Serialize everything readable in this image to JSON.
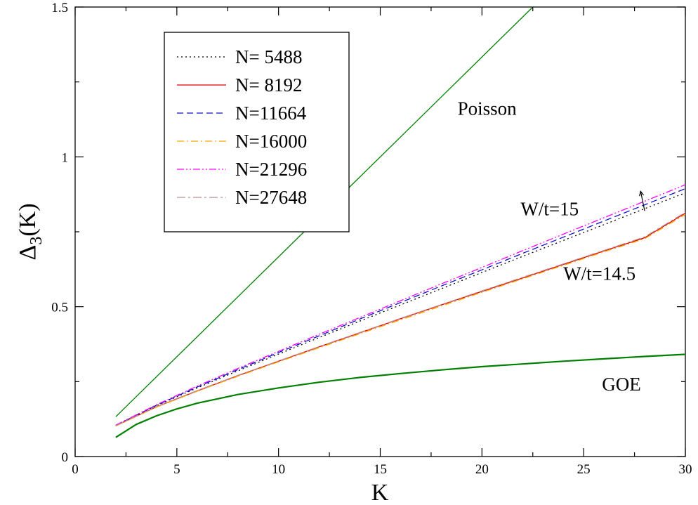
{
  "chart_data": {
    "type": "line",
    "xlabel": "K",
    "ylabel_main": "Δ",
    "ylabel_sub": "3",
    "ylabel_tail": "(K)",
    "xlim": [
      0,
      30
    ],
    "ylim": [
      0,
      1.5
    ],
    "x_major_ticks": [
      0,
      5,
      10,
      15,
      20,
      25,
      30
    ],
    "x_tick_labels": [
      "0",
      "5",
      "10",
      "15",
      "20",
      "25",
      "30"
    ],
    "y_major_ticks": [
      0,
      0.5,
      1,
      1.5
    ],
    "y_tick_labels": [
      "0",
      "0.5",
      "1",
      "1.5"
    ],
    "x_minor_step": 2.5,
    "y_minor_step": 0.25,
    "grid": false,
    "legend_position": "top-left",
    "x": [
      2,
      4,
      6,
      8,
      10,
      12,
      14,
      16,
      18,
      20,
      22,
      24,
      26,
      28,
      30
    ],
    "series": [
      {
        "name": "N= 5488",
        "color": "#000000",
        "dash": "2,4",
        "width": 1.3,
        "values": [
          0.103,
          0.17,
          0.229,
          0.286,
          0.342,
          0.397,
          0.452,
          0.506,
          0.56,
          0.614,
          0.668,
          0.721,
          0.774,
          0.827,
          0.88
        ]
      },
      {
        "name": "N= 8192",
        "color": "#e00000",
        "dash": "",
        "width": 1.3,
        "values": [
          0.103,
          0.166,
          0.219,
          0.27,
          0.318,
          0.366,
          0.413,
          0.46,
          0.506,
          0.551,
          0.596,
          0.641,
          0.686,
          0.73,
          0.812
        ]
      },
      {
        "name": "N=11664",
        "color": "#1010cc",
        "dash": "9,5",
        "width": 1.3,
        "values": [
          0.104,
          0.171,
          0.232,
          0.29,
          0.347,
          0.403,
          0.459,
          0.514,
          0.569,
          0.623,
          0.678,
          0.732,
          0.786,
          0.84,
          0.894
        ]
      },
      {
        "name": "N=16000",
        "color": "#ffa500",
        "dash": "10,4,2,4",
        "width": 1.3,
        "values": [
          0.102,
          0.165,
          0.218,
          0.268,
          0.316,
          0.363,
          0.41,
          0.456,
          0.502,
          0.548,
          0.593,
          0.638,
          0.683,
          0.727,
          0.808
        ]
      },
      {
        "name": "N=21296",
        "color": "#ff00ff",
        "dash": "10,3,2,3,2,3",
        "width": 1.3,
        "values": [
          0.105,
          0.173,
          0.235,
          0.294,
          0.351,
          0.408,
          0.464,
          0.52,
          0.576,
          0.631,
          0.687,
          0.742,
          0.797,
          0.852,
          0.907
        ]
      },
      {
        "name": "N=27648",
        "color": "#bc8f8f",
        "dash": "12,4,3,4",
        "width": 1.3,
        "values": [
          0.103,
          0.167,
          0.22,
          0.271,
          0.319,
          0.367,
          0.414,
          0.461,
          0.507,
          0.553,
          0.598,
          0.643,
          0.688,
          0.733,
          0.815
        ]
      }
    ],
    "reference_curves": [
      {
        "label": "Poisson",
        "color": "#008000",
        "width": 1.3,
        "x": [
          2,
          22.5
        ],
        "values": [
          0.133,
          1.5
        ]
      },
      {
        "label": "GOE",
        "color": "#008000",
        "width": 2.2,
        "x": [
          2,
          3,
          4,
          5,
          6,
          8,
          10,
          12,
          14,
          16,
          18,
          20,
          22,
          24,
          26,
          28,
          30
        ],
        "values": [
          0.064,
          0.107,
          0.136,
          0.159,
          0.178,
          0.207,
          0.229,
          0.248,
          0.264,
          0.277,
          0.289,
          0.3,
          0.309,
          0.318,
          0.326,
          0.334,
          0.341
        ]
      }
    ],
    "annotations": [
      {
        "text": "Poisson",
        "x": 18.8,
        "y": 1.14
      },
      {
        "text": "W/t=15",
        "x": 21.9,
        "y": 0.805
      },
      {
        "text": "W/t=14.5",
        "x": 24.0,
        "y": 0.59
      },
      {
        "text": "GOE",
        "x": 25.9,
        "y": 0.22
      }
    ],
    "arrow": {
      "x_from": 28.0,
      "y_from": 0.82,
      "x_to": 27.8,
      "y_to": 0.885
    }
  }
}
